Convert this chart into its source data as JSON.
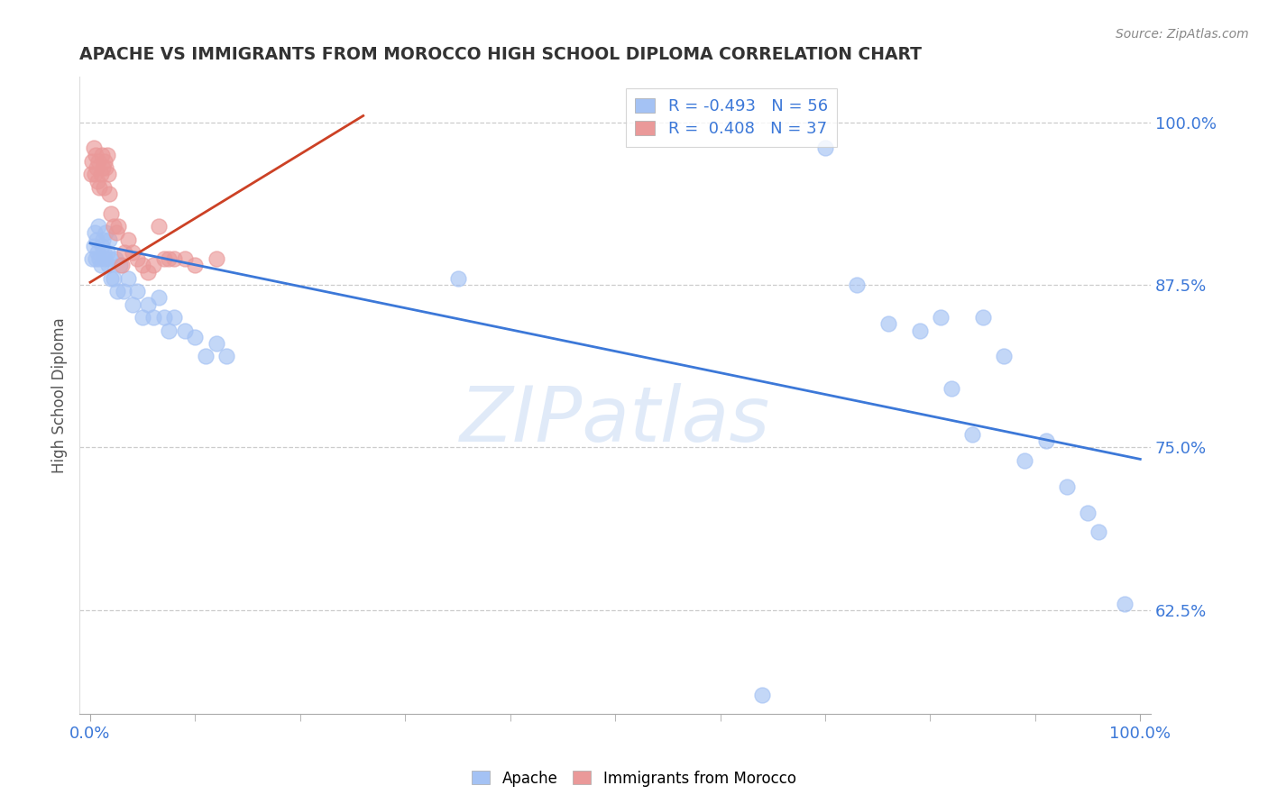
{
  "title": "APACHE VS IMMIGRANTS FROM MOROCCO HIGH SCHOOL DIPLOMA CORRELATION CHART",
  "source": "Source: ZipAtlas.com",
  "ylabel": "High School Diploma",
  "ytick_labels": [
    "100.0%",
    "87.5%",
    "75.0%",
    "62.5%"
  ],
  "ytick_values": [
    1.0,
    0.875,
    0.75,
    0.625
  ],
  "xlim": [
    -0.01,
    1.01
  ],
  "ylim": [
    0.545,
    1.035
  ],
  "legend_blue_r": "-0.493",
  "legend_blue_n": "56",
  "legend_pink_r": "0.408",
  "legend_pink_n": "37",
  "blue_color": "#a4c2f4",
  "pink_color": "#ea9999",
  "blue_line_color": "#3c78d8",
  "pink_line_color": "#cc4125",
  "watermark": "ZIPatlas",
  "blue_line_x0": 0.0,
  "blue_line_y0": 0.907,
  "blue_line_x1": 1.0,
  "blue_line_y1": 0.741,
  "pink_line_x0": 0.0,
  "pink_line_y0": 0.877,
  "pink_line_x1": 0.26,
  "pink_line_y1": 1.005,
  "apache_x": [
    0.002,
    0.003,
    0.004,
    0.005,
    0.006,
    0.007,
    0.008,
    0.009,
    0.01,
    0.011,
    0.012,
    0.013,
    0.014,
    0.015,
    0.016,
    0.017,
    0.018,
    0.019,
    0.02,
    0.022,
    0.024,
    0.026,
    0.028,
    0.032,
    0.036,
    0.04,
    0.045,
    0.05,
    0.055,
    0.06,
    0.065,
    0.07,
    0.075,
    0.08,
    0.09,
    0.1,
    0.11,
    0.12,
    0.13,
    0.35,
    0.64,
    0.7,
    0.73,
    0.76,
    0.79,
    0.81,
    0.82,
    0.84,
    0.85,
    0.87,
    0.89,
    0.91,
    0.93,
    0.95,
    0.96,
    0.985
  ],
  "apache_y": [
    0.895,
    0.905,
    0.915,
    0.895,
    0.91,
    0.9,
    0.92,
    0.895,
    0.89,
    0.905,
    0.91,
    0.9,
    0.895,
    0.915,
    0.9,
    0.89,
    0.91,
    0.895,
    0.88,
    0.88,
    0.895,
    0.87,
    0.89,
    0.87,
    0.88,
    0.86,
    0.87,
    0.85,
    0.86,
    0.85,
    0.865,
    0.85,
    0.84,
    0.85,
    0.84,
    0.835,
    0.82,
    0.83,
    0.82,
    0.88,
    0.56,
    0.98,
    0.875,
    0.845,
    0.84,
    0.85,
    0.795,
    0.76,
    0.85,
    0.82,
    0.74,
    0.755,
    0.72,
    0.7,
    0.685,
    0.63
  ],
  "morocco_x": [
    0.001,
    0.002,
    0.003,
    0.004,
    0.005,
    0.006,
    0.007,
    0.008,
    0.009,
    0.01,
    0.011,
    0.012,
    0.013,
    0.014,
    0.015,
    0.016,
    0.017,
    0.018,
    0.02,
    0.022,
    0.025,
    0.027,
    0.03,
    0.033,
    0.036,
    0.04,
    0.045,
    0.05,
    0.055,
    0.06,
    0.065,
    0.07,
    0.075,
    0.08,
    0.09,
    0.1,
    0.12
  ],
  "morocco_y": [
    0.96,
    0.97,
    0.98,
    0.96,
    0.975,
    0.965,
    0.955,
    0.97,
    0.95,
    0.96,
    0.975,
    0.965,
    0.95,
    0.97,
    0.965,
    0.975,
    0.96,
    0.945,
    0.93,
    0.92,
    0.915,
    0.92,
    0.89,
    0.9,
    0.91,
    0.9,
    0.895,
    0.89,
    0.885,
    0.89,
    0.92,
    0.895,
    0.895,
    0.895,
    0.895,
    0.89,
    0.895
  ]
}
